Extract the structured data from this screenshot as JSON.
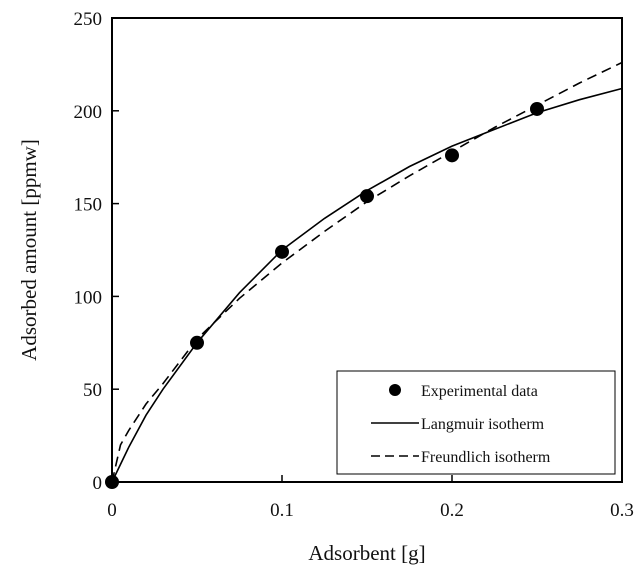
{
  "chart_data": {
    "type": "scatter",
    "title": "",
    "xlabel": "Adsorbent [g]",
    "ylabel": "Adsorbed amount [ppmw]",
    "xlim": [
      0,
      0.3
    ],
    "ylim": [
      0,
      250
    ],
    "xticks": [
      0,
      0.1,
      0.2,
      0.3
    ],
    "xtick_labels": [
      "0",
      "0.1",
      "0.2",
      "0.3"
    ],
    "yticks": [
      0,
      50,
      100,
      150,
      200,
      250
    ],
    "ytick_labels": [
      "0",
      "50",
      "100",
      "150",
      "200",
      "250"
    ],
    "grid": false,
    "legend_position": "bottom-right",
    "series": [
      {
        "name": "Experimental data",
        "kind": "markers",
        "x": [
          0,
          0.05,
          0.1,
          0.15,
          0.2,
          0.25
        ],
        "y": [
          0,
          75,
          124,
          154,
          176,
          201
        ]
      },
      {
        "name": "Langmuir isotherm",
        "kind": "solid-line",
        "x": [
          0,
          0.01,
          0.02,
          0.03,
          0.05,
          0.075,
          0.1,
          0.125,
          0.15,
          0.175,
          0.2,
          0.225,
          0.25,
          0.275,
          0.3
        ],
        "y": [
          0,
          19,
          36,
          50,
          75,
          102,
          125,
          142,
          157,
          170,
          181,
          190,
          199,
          206,
          212
        ]
      },
      {
        "name": "Freundlich isotherm",
        "kind": "dashed-line",
        "x": [
          0,
          0.005,
          0.01,
          0.02,
          0.03,
          0.05,
          0.075,
          0.1,
          0.125,
          0.15,
          0.175,
          0.2,
          0.225,
          0.25,
          0.275,
          0.3
        ],
        "y": [
          0,
          20,
          28,
          42,
          53,
          77,
          99,
          118,
          135,
          151,
          165,
          178,
          191,
          203,
          215,
          226
        ]
      }
    ]
  }
}
